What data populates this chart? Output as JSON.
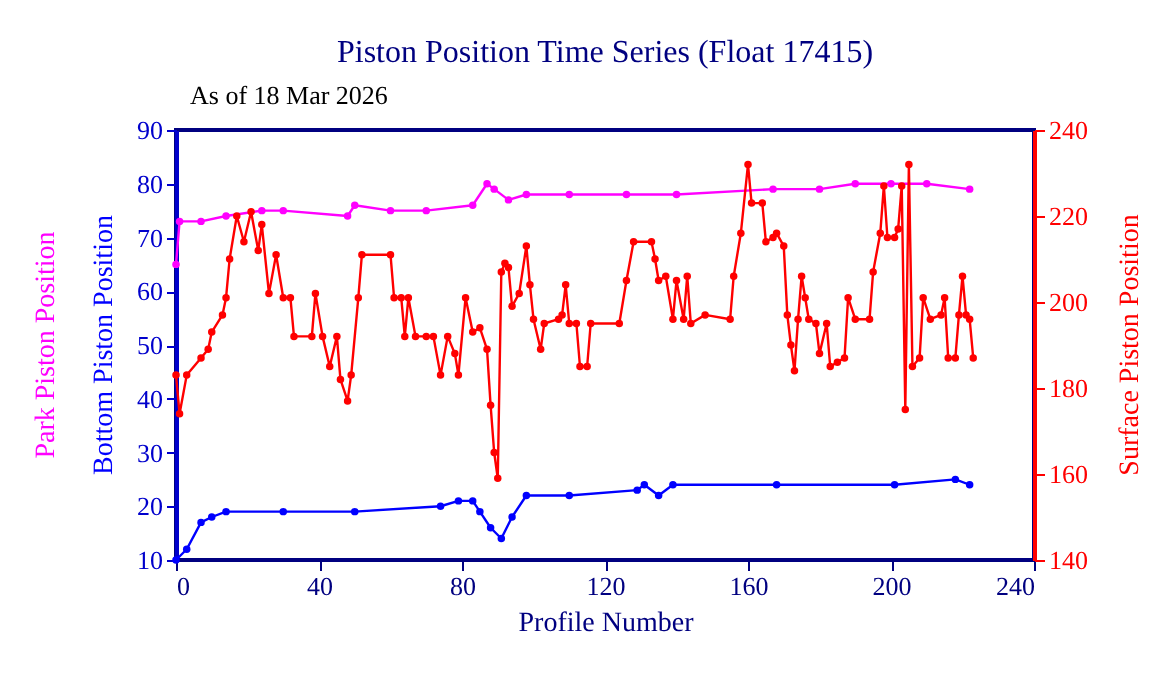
{
  "chart_data": {
    "type": "line",
    "title": "Piston Position Time Series (Float 17415)",
    "xlabel": "Profile Number",
    "annotations": [
      "As of 18 Mar 2026"
    ],
    "xlim": [
      0,
      240
    ],
    "xticks": [
      0,
      40,
      80,
      120,
      160,
      200,
      240
    ],
    "ylim": [
      10,
      90
    ],
    "yticks": [
      10,
      20,
      30,
      40,
      50,
      60,
      70,
      80,
      90
    ],
    "y2lim": [
      140,
      240
    ],
    "y2ticks": [
      140,
      160,
      180,
      200,
      220,
      240
    ],
    "grid": false,
    "marker": "circle",
    "line_style": "solid",
    "series": [
      {
        "name": "Park Piston Position",
        "color": "#ff00ff",
        "x": [
          0,
          1,
          7,
          14,
          24,
          30,
          48,
          50,
          60,
          70,
          83,
          87,
          89,
          93,
          98,
          110,
          126,
          140,
          167,
          180,
          190,
          200,
          210,
          222
        ],
        "values": [
          65,
          73,
          73,
          74,
          75,
          75,
          74,
          76,
          75,
          75,
          76,
          80,
          79,
          77,
          78,
          78,
          78,
          78,
          79,
          79,
          80,
          80,
          80,
          79
        ]
      },
      {
        "name": "Bottom Piston Position",
        "color": "#0000ff",
        "x": [
          0,
          3,
          7,
          10,
          14,
          30,
          50,
          74,
          79,
          83,
          85,
          88,
          91,
          94,
          98,
          110,
          129,
          131,
          135,
          139,
          168,
          201,
          218,
          222
        ],
        "values": [
          10,
          12,
          17,
          18,
          19,
          19,
          19,
          20,
          21,
          21,
          19,
          16,
          14,
          18,
          22,
          22,
          23,
          24,
          22,
          24,
          24,
          24,
          25,
          24
        ]
      },
      {
        "name": "Surface Piston Position",
        "color": "#ff0000",
        "axis": "y2",
        "x": [
          0,
          1,
          3,
          7,
          9,
          10,
          13,
          14,
          15,
          17,
          19,
          21,
          23,
          24,
          26,
          28,
          30,
          32,
          33,
          38,
          39,
          41,
          43,
          45,
          46,
          48,
          49,
          51,
          52,
          60,
          61,
          63,
          64,
          65,
          67,
          70,
          72,
          74,
          76,
          78,
          79,
          81,
          83,
          85,
          87,
          88,
          89,
          90,
          91,
          92,
          93,
          94,
          96,
          98,
          99,
          100,
          102,
          103,
          107,
          108,
          109,
          110,
          112,
          113,
          115,
          116,
          124,
          126,
          128,
          133,
          134,
          135,
          137,
          139,
          140,
          142,
          143,
          144,
          148,
          155,
          156,
          158,
          160,
          161,
          164,
          165,
          167,
          168,
          170,
          171,
          172,
          173,
          174,
          175,
          176,
          177,
          179,
          180,
          182,
          183,
          185,
          187,
          188,
          190,
          194,
          195,
          197,
          198,
          199,
          201,
          202,
          203,
          204,
          205,
          206,
          208,
          209,
          211,
          214,
          215,
          216,
          218,
          219,
          220,
          221,
          222,
          223
        ],
        "values": [
          183,
          174,
          183,
          187,
          189,
          193,
          197,
          201,
          210,
          220,
          214,
          221,
          212,
          218,
          202,
          211,
          201,
          201,
          192,
          192,
          202,
          192,
          185,
          192,
          182,
          177,
          183,
          201,
          211,
          211,
          201,
          201,
          192,
          201,
          192,
          192,
          192,
          183,
          192,
          188,
          183,
          201,
          193,
          194,
          189,
          176,
          165,
          159,
          207,
          209,
          208,
          199,
          202,
          213,
          204,
          196,
          189,
          195,
          196,
          197,
          204,
          195,
          195,
          185,
          185,
          195,
          195,
          205,
          214,
          214,
          210,
          205,
          206,
          196,
          205,
          196,
          206,
          195,
          197,
          196,
          206,
          216,
          232,
          223,
          223,
          214,
          215,
          216,
          213,
          197,
          190,
          184,
          196,
          206,
          201,
          196,
          195,
          188,
          195,
          185,
          186,
          187,
          201,
          196,
          196,
          207,
          216,
          227,
          215,
          215,
          217,
          227,
          175,
          232,
          185,
          187,
          201,
          196,
          197,
          201,
          187,
          187,
          197,
          206,
          197,
          196,
          187
        ]
      }
    ]
  }
}
